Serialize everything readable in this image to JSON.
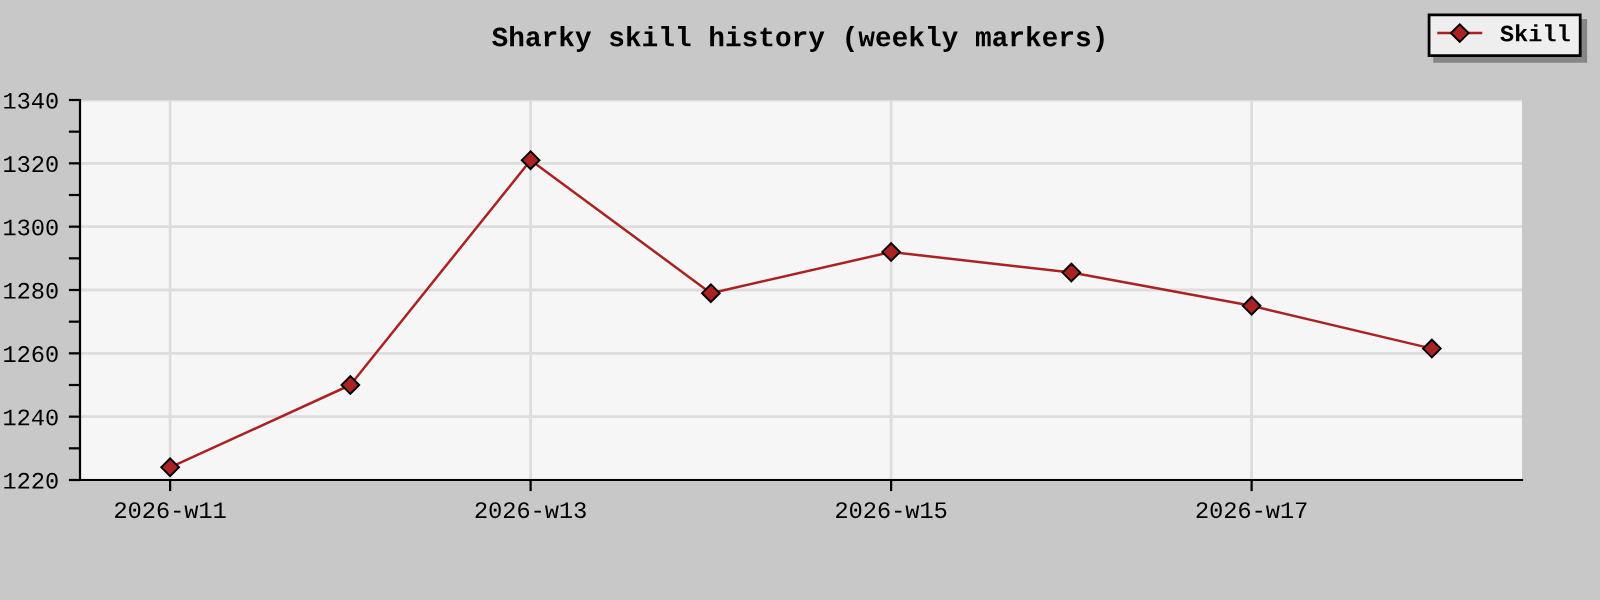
{
  "chart_data": {
    "type": "line",
    "title": "Sharky skill history (weekly markers)",
    "categories": [
      "2026-w11",
      null,
      "2026-w13",
      null,
      "2026-w15",
      null,
      "2026-w17",
      null
    ],
    "series": [
      {
        "name": "Skill",
        "color": "#aa2222",
        "values": [
          1224,
          1250,
          1321,
          1279,
          1292,
          1285.5,
          1275,
          1261.5
        ]
      }
    ],
    "ylim": [
      1220,
      1340
    ],
    "yticks": [
      1220,
      {
        "value": 1230,
        "label": null
      },
      1240,
      {
        "value": 1250,
        "label": null
      },
      1260,
      {
        "value": 1270,
        "label": null
      },
      1280,
      {
        "value": 1290,
        "label": null
      },
      1300,
      {
        "value": 1310,
        "label": null
      },
      1320,
      {
        "value": 1330,
        "label": null
      },
      1340
    ],
    "grid": true,
    "legend": "top right",
    "marker": "diamond",
    "line_style": "solid"
  }
}
